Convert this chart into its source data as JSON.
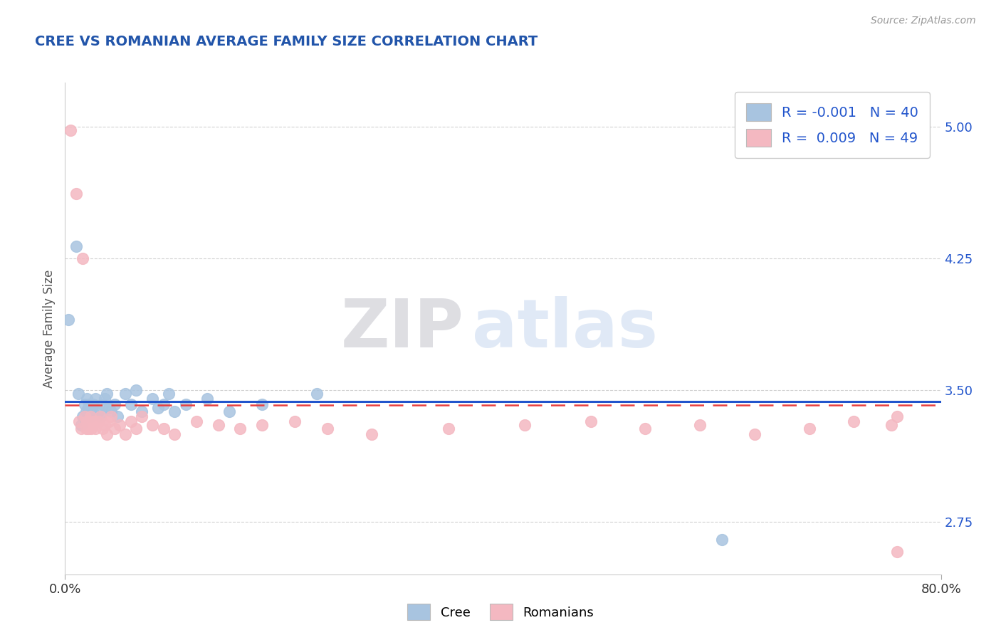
{
  "title": "CREE VS ROMANIAN AVERAGE FAMILY SIZE CORRELATION CHART",
  "source_text": "Source: ZipAtlas.com",
  "xlabel": "",
  "ylabel": "Average Family Size",
  "xlim": [
    0.0,
    0.8
  ],
  "ylim": [
    2.45,
    5.25
  ],
  "yticks": [
    2.75,
    3.5,
    4.25,
    5.0
  ],
  "xticks": [
    0.0,
    0.8
  ],
  "xticklabels": [
    "0.0%",
    "80.0%"
  ],
  "yticklabels_right": [
    "2.75",
    "3.50",
    "4.25",
    "5.00"
  ],
  "cree_color": "#a8c4e0",
  "romanian_color": "#f4b8c1",
  "cree_line_color": "#2255cc",
  "romanian_line_color": "#e84040",
  "legend_R_cree": "-0.001",
  "legend_N_cree": "40",
  "legend_R_romanian": "0.009",
  "legend_N_romanian": "49",
  "watermark_zip": "ZIP",
  "watermark_atlas": "atlas",
  "title_color": "#2255aa",
  "axis_label_color": "#555555",
  "tick_color": "#2255cc",
  "grid_color": "#cccccc",
  "background_color": "#ffffff",
  "cree_line_y": 3.435,
  "romanian_line_y": 3.415,
  "cree_x": [
    0.003,
    0.01,
    0.012,
    0.015,
    0.016,
    0.018,
    0.019,
    0.02,
    0.021,
    0.022,
    0.022,
    0.023,
    0.024,
    0.025,
    0.026,
    0.028,
    0.03,
    0.032,
    0.034,
    0.036,
    0.038,
    0.04,
    0.042,
    0.045,
    0.048,
    0.055,
    0.06,
    0.065,
    0.07,
    0.08,
    0.085,
    0.09,
    0.095,
    0.1,
    0.11,
    0.13,
    0.15,
    0.18,
    0.23,
    0.6
  ],
  "cree_y": [
    3.9,
    4.32,
    3.48,
    3.3,
    3.35,
    3.42,
    3.38,
    3.45,
    3.4,
    3.38,
    3.42,
    3.35,
    3.4,
    3.38,
    3.42,
    3.45,
    3.38,
    3.35,
    3.42,
    3.45,
    3.48,
    3.4,
    3.38,
    3.42,
    3.35,
    3.48,
    3.42,
    3.5,
    3.38,
    3.45,
    3.4,
    3.42,
    3.48,
    3.38,
    3.42,
    3.45,
    3.38,
    3.42,
    3.48,
    2.65
  ],
  "romanian_x": [
    0.005,
    0.01,
    0.013,
    0.015,
    0.016,
    0.018,
    0.019,
    0.02,
    0.021,
    0.022,
    0.023,
    0.024,
    0.025,
    0.026,
    0.028,
    0.03,
    0.032,
    0.034,
    0.036,
    0.038,
    0.04,
    0.042,
    0.045,
    0.05,
    0.055,
    0.06,
    0.065,
    0.07,
    0.08,
    0.09,
    0.1,
    0.12,
    0.14,
    0.16,
    0.18,
    0.21,
    0.24,
    0.28,
    0.35,
    0.42,
    0.48,
    0.53,
    0.58,
    0.63,
    0.68,
    0.72,
    0.755,
    0.76,
    0.76
  ],
  "romanian_y": [
    4.98,
    4.62,
    3.32,
    3.28,
    4.25,
    3.35,
    3.28,
    3.32,
    3.28,
    3.32,
    3.35,
    3.28,
    3.3,
    3.32,
    3.28,
    3.32,
    3.35,
    3.28,
    3.3,
    3.25,
    3.32,
    3.35,
    3.28,
    3.3,
    3.25,
    3.32,
    3.28,
    3.35,
    3.3,
    3.28,
    3.25,
    3.32,
    3.3,
    3.28,
    3.3,
    3.32,
    3.28,
    3.25,
    3.28,
    3.3,
    3.32,
    3.28,
    3.3,
    3.25,
    3.28,
    3.32,
    3.3,
    2.58,
    3.35
  ]
}
